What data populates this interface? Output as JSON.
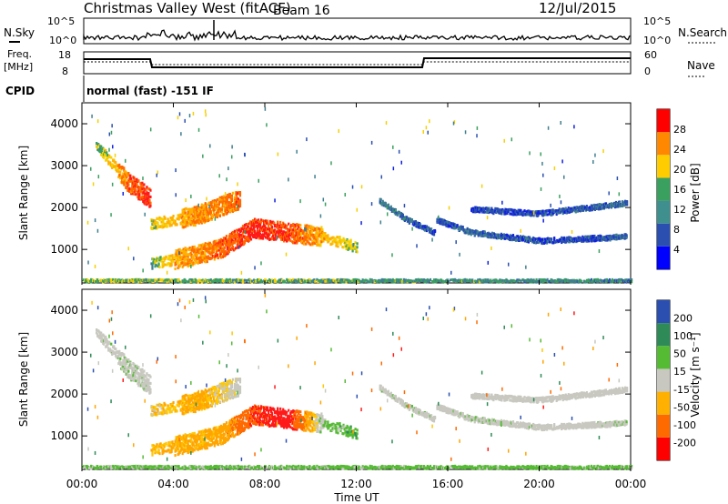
{
  "header": {
    "title": "Christmas Valley West (fitACF)",
    "beam": "Beam 16",
    "date": "12/Jul/2015"
  },
  "panels": {
    "nsky_label": "N.Sky",
    "nsky_ticks": [
      "10^5",
      "10^0"
    ],
    "nsearch_label": "N.Search",
    "nsearch_ticks": [
      "10^5",
      "10^0"
    ],
    "freq_label_1": "Freq.",
    "freq_label_2": "[MHz]",
    "freq_ticks": [
      "18",
      "8"
    ],
    "nave_label": "Nave",
    "nave_ticks": [
      "60",
      "0"
    ],
    "cpid_label": "CPID",
    "cpid_value": "normal (fast) -151 IF"
  },
  "chart_data": [
    {
      "type": "heatmap",
      "name": "power",
      "ylabel": "Slant Range [km]",
      "ylim": [
        200,
        4500
      ],
      "yticks": [
        "1000",
        "2000",
        "3000",
        "4000"
      ],
      "xlabel": "",
      "colorbar_label": "Power [dB]",
      "colorbar_ticks": [
        "28",
        "24",
        "20",
        "16",
        "12",
        "8",
        "4"
      ],
      "colorbar_colors": [
        "#0000ff",
        "#2a4fb0",
        "#3f8f8f",
        "#3aa060",
        "#ffcc00",
        "#ff8800",
        "#ff0000"
      ]
    },
    {
      "type": "heatmap",
      "name": "velocity",
      "ylabel": "Slant Range [km]",
      "ylim": [
        200,
        4500
      ],
      "yticks": [
        "1000",
        "2000",
        "3000",
        "4000"
      ],
      "xlabel": "Time UT",
      "xticks": [
        "00:00",
        "04:00",
        "08:00",
        "12:00",
        "16:00",
        "20:00",
        "00:00"
      ],
      "colorbar_label": "Velocity [m s⁻¹]",
      "colorbar_ticks": [
        "200",
        "100",
        "50",
        "15",
        "-15",
        "-50",
        "-100",
        "-200"
      ],
      "colorbar_colors": [
        "#ff0000",
        "#ff6a00",
        "#ffb000",
        "#c8c8c0",
        "#55bb33",
        "#2e8b57",
        "#2a4fb0"
      ]
    }
  ],
  "echo_bands": [
    {
      "t": [
        0.6,
        2.0,
        3.0
      ],
      "r": [
        3500,
        2600,
        2200
      ],
      "p": [
        12,
        24,
        28
      ],
      "v": [
        0,
        5,
        0
      ]
    },
    {
      "t": [
        3.0,
        5.0,
        6.9
      ],
      "r": [
        1600,
        1800,
        2200
      ],
      "p": [
        16,
        22,
        24
      ],
      "v": [
        -20,
        -40,
        0
      ]
    },
    {
      "t": [
        3.0,
        4.0,
        6.0,
        7.5,
        9.0,
        10.5,
        12.0
      ],
      "r": [
        650,
        750,
        1000,
        1500,
        1400,
        1300,
        1050
      ],
      "p": [
        12,
        20,
        24,
        28,
        26,
        20,
        14
      ],
      "v": [
        -30,
        -35,
        -40,
        -120,
        -150,
        20,
        30
      ]
    },
    {
      "t": [
        13.0,
        14.2,
        15.4
      ],
      "r": [
        2150,
        1700,
        1400
      ],
      "p": [
        10,
        8,
        6
      ],
      "v": [
        0,
        5,
        0
      ]
    },
    {
      "t": [
        15.5,
        17.0,
        20.0,
        22.0,
        23.8
      ],
      "r": [
        1700,
        1400,
        1200,
        1250,
        1300
      ],
      "p": [
        6,
        8,
        6,
        6,
        8
      ],
      "v": [
        0,
        5,
        0,
        0,
        5
      ]
    },
    {
      "t": [
        17.0,
        20.0,
        23.8
      ],
      "r": [
        1950,
        1850,
        2100
      ],
      "p": [
        6,
        6,
        8
      ],
      "v": [
        0,
        0,
        0
      ]
    },
    {
      "t": [
        0.0,
        12.0,
        24.0
      ],
      "r": [
        250,
        250,
        250
      ],
      "p": [
        14,
        12,
        10
      ],
      "v": [
        20,
        25,
        25
      ]
    }
  ]
}
